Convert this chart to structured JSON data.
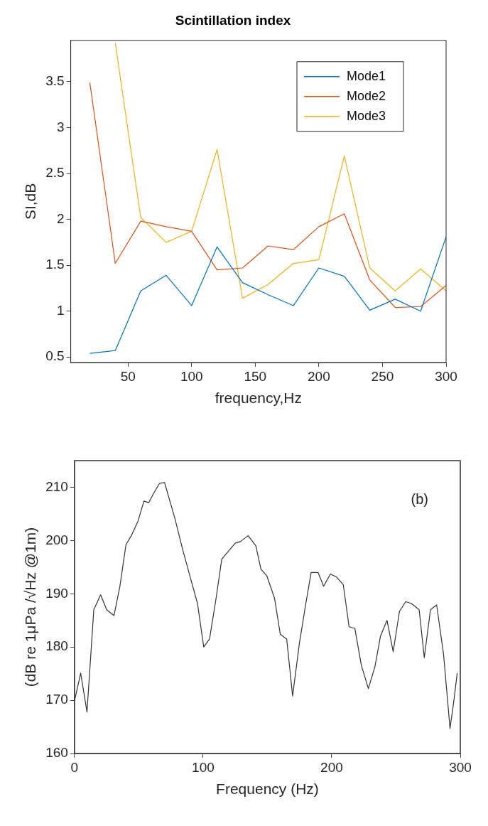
{
  "chart_data": [
    {
      "type": "line",
      "title": "Scintillation index",
      "xlabel": "frequency,Hz",
      "ylabel": "SI,dB",
      "x": [
        20,
        40,
        60,
        80,
        100,
        120,
        140,
        160,
        180,
        200,
        220,
        240,
        260,
        280,
        300
      ],
      "series": [
        {
          "name": "Mode1",
          "color": "#0072bd",
          "values": [
            0.54,
            0.57,
            1.22,
            1.39,
            1.06,
            1.7,
            1.31,
            1.18,
            1.06,
            1.47,
            1.38,
            1.01,
            1.13,
            1.0,
            1.81
          ]
        },
        {
          "name": "Mode2",
          "color": "#d95319",
          "values": [
            3.49,
            1.52,
            1.98,
            1.92,
            1.87,
            1.45,
            1.47,
            1.71,
            1.67,
            1.92,
            2.06,
            1.34,
            1.04,
            1.05,
            1.28
          ]
        },
        {
          "name": "Mode3",
          "color": "#edb120",
          "values": [
            null,
            3.92,
            2.02,
            1.75,
            1.87,
            2.76,
            1.14,
            1.29,
            1.52,
            1.56,
            2.69,
            1.47,
            1.22,
            1.46,
            1.22
          ]
        }
      ],
      "xlim": [
        5,
        300
      ],
      "ylim": [
        0.44,
        3.95
      ],
      "xticks": [
        50,
        100,
        150,
        200,
        250,
        300
      ],
      "yticks": [
        0.5,
        1,
        1.5,
        2,
        2.5,
        3,
        3.5
      ],
      "grid": false,
      "legend": "top right",
      "marker": "none",
      "line_style": "solid"
    },
    {
      "type": "line",
      "xlabel": "Frequency (Hz)",
      "ylabel": "(dB re 1μPa /√Hz @1m)",
      "annotations": [
        "(b)"
      ],
      "x": [
        0,
        4.8,
        9.7,
        15,
        20.3,
        25,
        30.7,
        35.3,
        40,
        44.4,
        49.3,
        54,
        57.7,
        61.4,
        66,
        70,
        78,
        84,
        90,
        95.6,
        100.5,
        105,
        110,
        114.5,
        119,
        125,
        129,
        135,
        141,
        145,
        149.5,
        155.6,
        160,
        165,
        169.6,
        175,
        179.7,
        184,
        189.4,
        193.7,
        199,
        204,
        209,
        213.5,
        218,
        223,
        228.5,
        233.6,
        238,
        243,
        247.8,
        252.7,
        257.5,
        261.8,
        268,
        272,
        276.8,
        281.6,
        287,
        292,
        295,
        297.6
      ],
      "series": [
        {
          "color": "#333333",
          "values": [
            169.9,
            175.1,
            167.8,
            187,
            189.8,
            187,
            185.9,
            191.4,
            199.2,
            201,
            203.6,
            207.4,
            207.1,
            208.8,
            210.7,
            210.9,
            204.2,
            198.4,
            193.1,
            188.2,
            180,
            181.5,
            189,
            196.5,
            197.8,
            199.5,
            199.8,
            200.9,
            199,
            194.6,
            193.4,
            189.1,
            182.4,
            181.5,
            170.8,
            180.9,
            187.9,
            194,
            194,
            191.4,
            193.7,
            193.1,
            191.7,
            183.8,
            183.5,
            176.6,
            172.2,
            176.3,
            182.1,
            185,
            179.1,
            186.7,
            188.5,
            188.2,
            187,
            178,
            187,
            187.9,
            178.6,
            164.7,
            169.9,
            175.1
          ]
        }
      ],
      "xlim": [
        0,
        300
      ],
      "ylim": [
        160,
        215
      ],
      "xticks": [
        0,
        100,
        200,
        300
      ],
      "yticks": [
        160,
        170,
        180,
        190,
        200,
        210
      ],
      "grid": false,
      "legend": false,
      "marker": "none",
      "line_style": "solid"
    }
  ]
}
